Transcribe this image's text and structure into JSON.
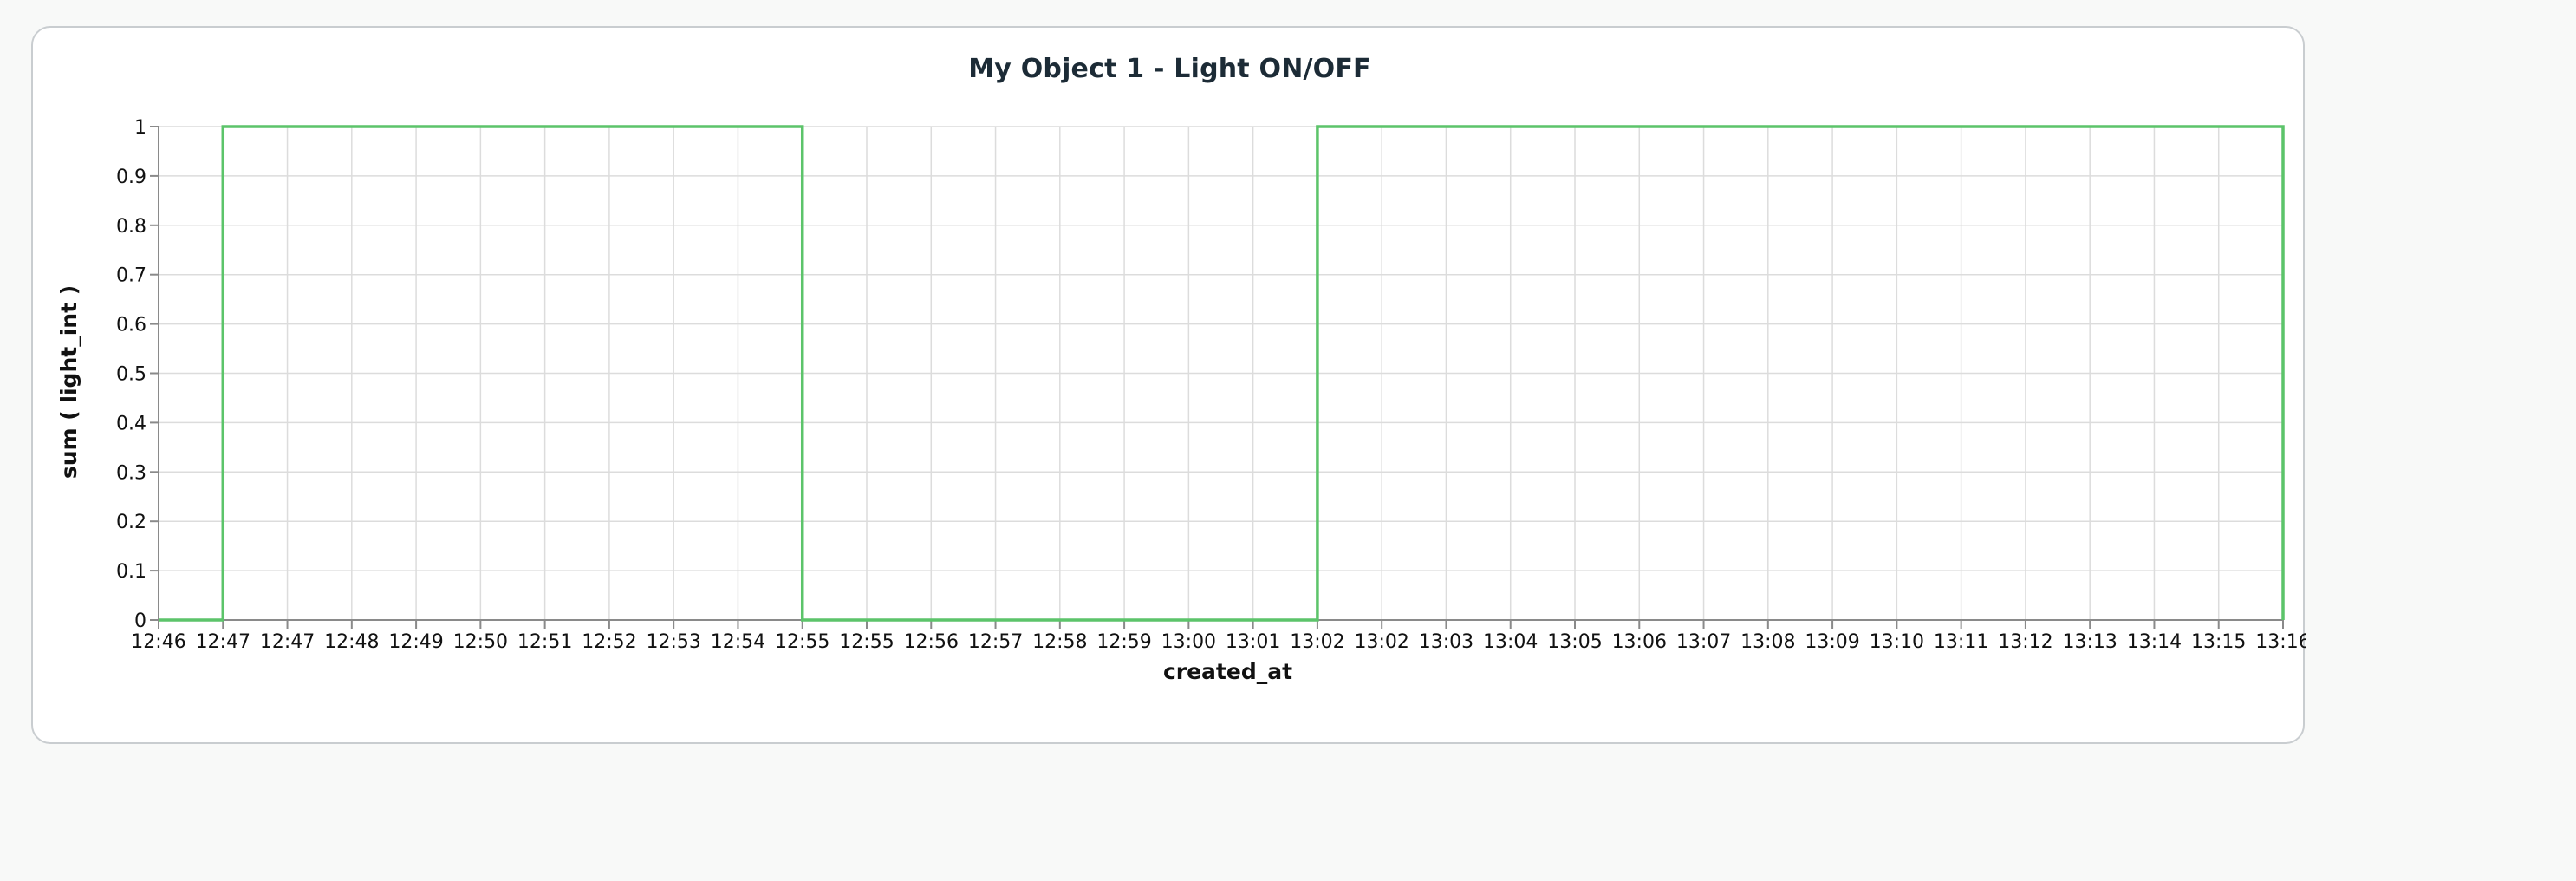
{
  "chart_data": {
    "type": "line",
    "title": "My Object 1 - Light ON/OFF",
    "xlabel": "created_at",
    "ylabel": "sum ( light_int )",
    "x_tick_labels": [
      "12:46",
      "12:47",
      "12:47",
      "12:48",
      "12:49",
      "12:50",
      "12:51",
      "12:52",
      "12:53",
      "12:54",
      "12:55",
      "12:55",
      "12:56",
      "12:57",
      "12:58",
      "12:59",
      "13:00",
      "13:01",
      "13:02",
      "13:02",
      "13:03",
      "13:04",
      "13:05",
      "13:06",
      "13:07",
      "13:08",
      "13:09",
      "13:10",
      "13:11",
      "13:12",
      "13:13",
      "13:14",
      "13:15",
      "13:16"
    ],
    "y_tick_labels": [
      "0",
      "0.1",
      "0.2",
      "0.3",
      "0.4",
      "0.5",
      "0.6",
      "0.7",
      "0.8",
      "0.9",
      "1"
    ],
    "ylim": [
      0,
      1
    ],
    "line_shape": "step",
    "grid": true,
    "series": [
      {
        "color": "#5cc46a",
        "points": [
          {
            "x": "12:46",
            "y": 0
          },
          {
            "x": "12:47",
            "y": 1
          },
          {
            "x": "12:55",
            "y": 0
          },
          {
            "x": "13:02",
            "y": 1
          },
          {
            "x": "13:16",
            "y": 0
          }
        ]
      }
    ]
  },
  "colors": {
    "line": "#5cc46a",
    "grid": "#dcdcdc",
    "axis": "#8a8a8a",
    "text": "#111111",
    "title": "#1c2b36"
  }
}
